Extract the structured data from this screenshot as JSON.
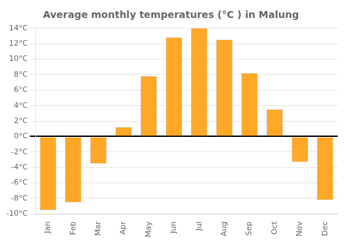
{
  "chart_data": {
    "type": "bar",
    "title": "Average monthly temperatures (°C ) in Malung",
    "categories": [
      "Jan",
      "Feb",
      "Mar",
      "Apr",
      "May",
      "Jun",
      "Jul",
      "Aug",
      "Sep",
      "Oct",
      "Nov",
      "Dec"
    ],
    "values": [
      -9.5,
      -8.5,
      -3.5,
      1.2,
      7.8,
      12.8,
      14.0,
      12.5,
      8.2,
      3.5,
      -3.3,
      -8.2
    ],
    "color": "#FFA726",
    "ylim": [
      -10,
      14
    ],
    "yticks": [
      {
        "value": -10,
        "label": "-10°C"
      },
      {
        "value": -8,
        "label": "-8°C"
      },
      {
        "value": -6,
        "label": "-6°C"
      },
      {
        "value": -4,
        "label": "-4°C"
      },
      {
        "value": -2,
        "label": "-2°C"
      },
      {
        "value": 0,
        "label": "0°C"
      },
      {
        "value": 2,
        "label": "2°C"
      },
      {
        "value": 4,
        "label": "4°C"
      },
      {
        "value": 6,
        "label": "6°C"
      },
      {
        "value": 8,
        "label": "8°C"
      },
      {
        "value": 10,
        "label": "10°C"
      },
      {
        "value": 12,
        "label": "12°C"
      },
      {
        "value": 14,
        "label": "14°C"
      }
    ],
    "grid": true
  }
}
